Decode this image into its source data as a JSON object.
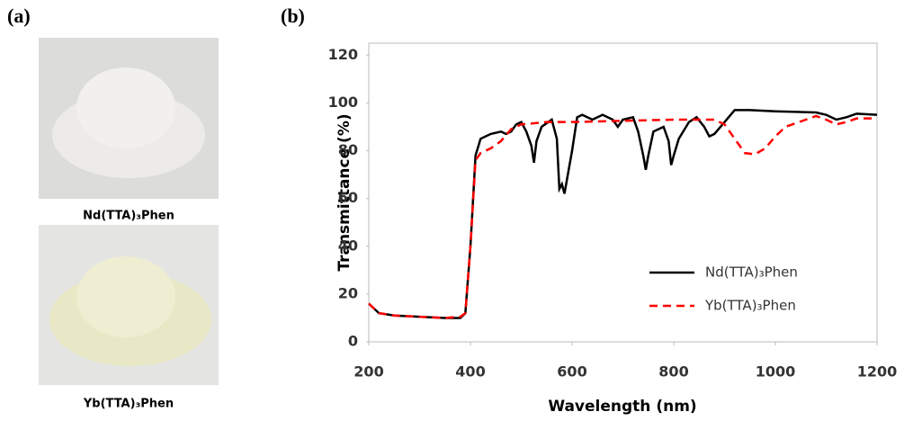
{
  "panel_labels": [
    "(a)",
    "(b)"
  ],
  "captions": [
    "Nd(TTA)₃Phen",
    "Yb(TTA)₃Phen"
  ],
  "chart_data": {
    "type": "line",
    "x_label": "Wavelength (nm)",
    "y_label": "Transmittance (%)",
    "xlim": [
      200,
      1200
    ],
    "xticks": [
      200,
      400,
      600,
      800,
      1000,
      1200
    ],
    "ylim": [
      0,
      125
    ],
    "yticks": [
      0,
      20,
      40,
      60,
      80,
      100,
      120
    ],
    "legend": "lower-right",
    "series": [
      {
        "name": "Nd(TTA)₃Phen",
        "color": "#000000",
        "dash": "solid",
        "x": [
          200,
          220,
          250,
          300,
          350,
          380,
          390,
          400,
          410,
          420,
          440,
          460,
          470,
          480,
          490,
          500,
          510,
          520,
          525,
          530,
          540,
          560,
          570,
          575,
          580,
          585,
          590,
          600,
          610,
          620,
          640,
          660,
          680,
          690,
          700,
          720,
          730,
          740,
          745,
          750,
          760,
          780,
          790,
          795,
          800,
          810,
          830,
          845,
          860,
          870,
          880,
          900,
          920,
          950,
          1000,
          1080,
          1100,
          1120,
          1140,
          1160,
          1200
        ],
        "values": [
          16,
          12,
          11,
          10.5,
          10,
          10,
          12,
          40,
          78,
          85,
          87,
          88,
          87,
          88,
          91,
          92,
          88,
          82,
          75,
          84,
          90,
          93,
          85,
          64,
          66,
          62,
          68,
          80,
          94,
          95,
          93,
          95,
          93,
          90,
          93,
          94,
          88,
          78,
          72,
          78,
          88,
          90,
          84,
          74,
          78,
          85,
          92,
          94,
          90,
          86,
          87,
          92,
          97,
          97,
          96.5,
          96,
          95,
          93,
          94,
          95.5,
          95
        ]
      },
      {
        "name": "Yb(TTA)₃Phen",
        "color": "#ff0000",
        "dash": "dashed",
        "x": [
          200,
          220,
          250,
          300,
          350,
          380,
          390,
          400,
          410,
          420,
          440,
          460,
          480,
          500,
          550,
          600,
          700,
          800,
          880,
          900,
          920,
          940,
          960,
          980,
          1000,
          1020,
          1060,
          1080,
          1100,
          1120,
          1140,
          1160,
          1200
        ],
        "values": [
          16,
          12,
          11,
          10.5,
          10,
          10.5,
          12,
          40,
          76,
          79,
          81,
          84,
          89,
          91,
          92,
          92,
          92.5,
          93,
          93,
          91,
          85,
          79,
          78.5,
          81,
          86,
          90,
          93,
          94.5,
          93,
          91,
          92,
          93.5,
          93.5
        ]
      }
    ]
  }
}
